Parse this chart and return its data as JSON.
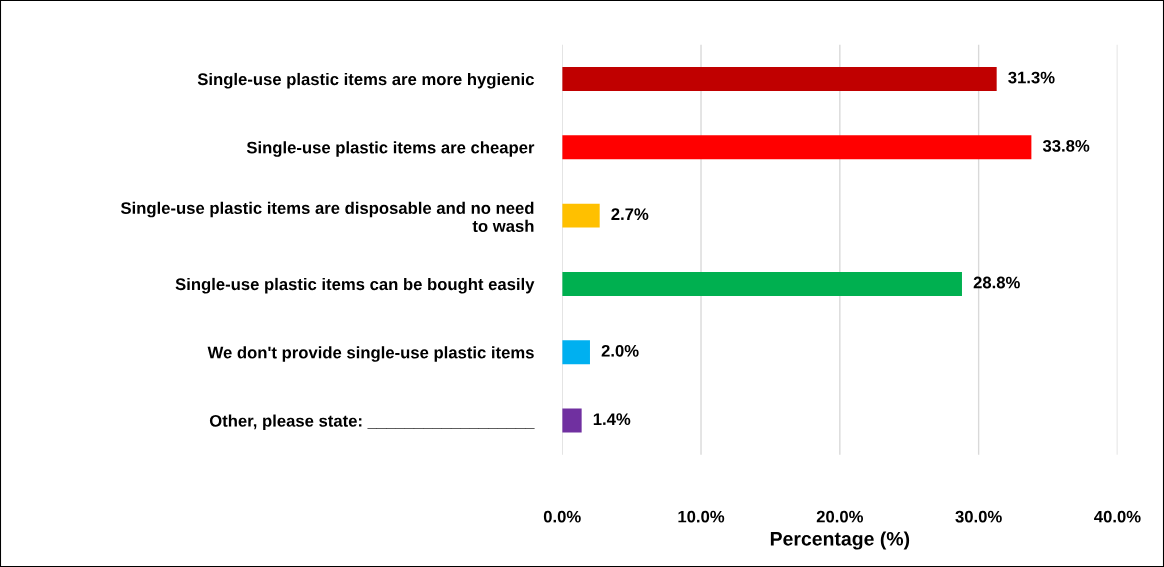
{
  "chart_data": {
    "type": "bar",
    "orientation": "horizontal",
    "xlabel": "Percentage (%)",
    "categories": [
      "Single-use plastic items are more hygienic",
      "Single-use plastic items are cheaper",
      "Single-use plastic items are disposable and no need\nto wash",
      "Single-use plastic items can be bought easily",
      "We don't provide single-use plastic items",
      "Other, please state: __________________"
    ],
    "values": [
      31.3,
      33.8,
      2.7,
      28.8,
      2.0,
      1.4
    ],
    "value_labels": [
      "31.3%",
      "33.8%",
      "2.7%",
      "28.8%",
      "2.0%",
      "1.4%"
    ],
    "colors": [
      "#c00000",
      "#ff0000",
      "#ffc000",
      "#00b050",
      "#00b0f0",
      "#7030a0"
    ],
    "xlim": [
      0,
      40
    ],
    "xticks": [
      {
        "value": 0,
        "label": "0.0%"
      },
      {
        "value": 10,
        "label": "10.0%"
      },
      {
        "value": 20,
        "label": "20.0%"
      },
      {
        "value": 30,
        "label": "30.0%"
      },
      {
        "value": 40,
        "label": "40.0%"
      }
    ],
    "grid": "x",
    "legend": false
  }
}
